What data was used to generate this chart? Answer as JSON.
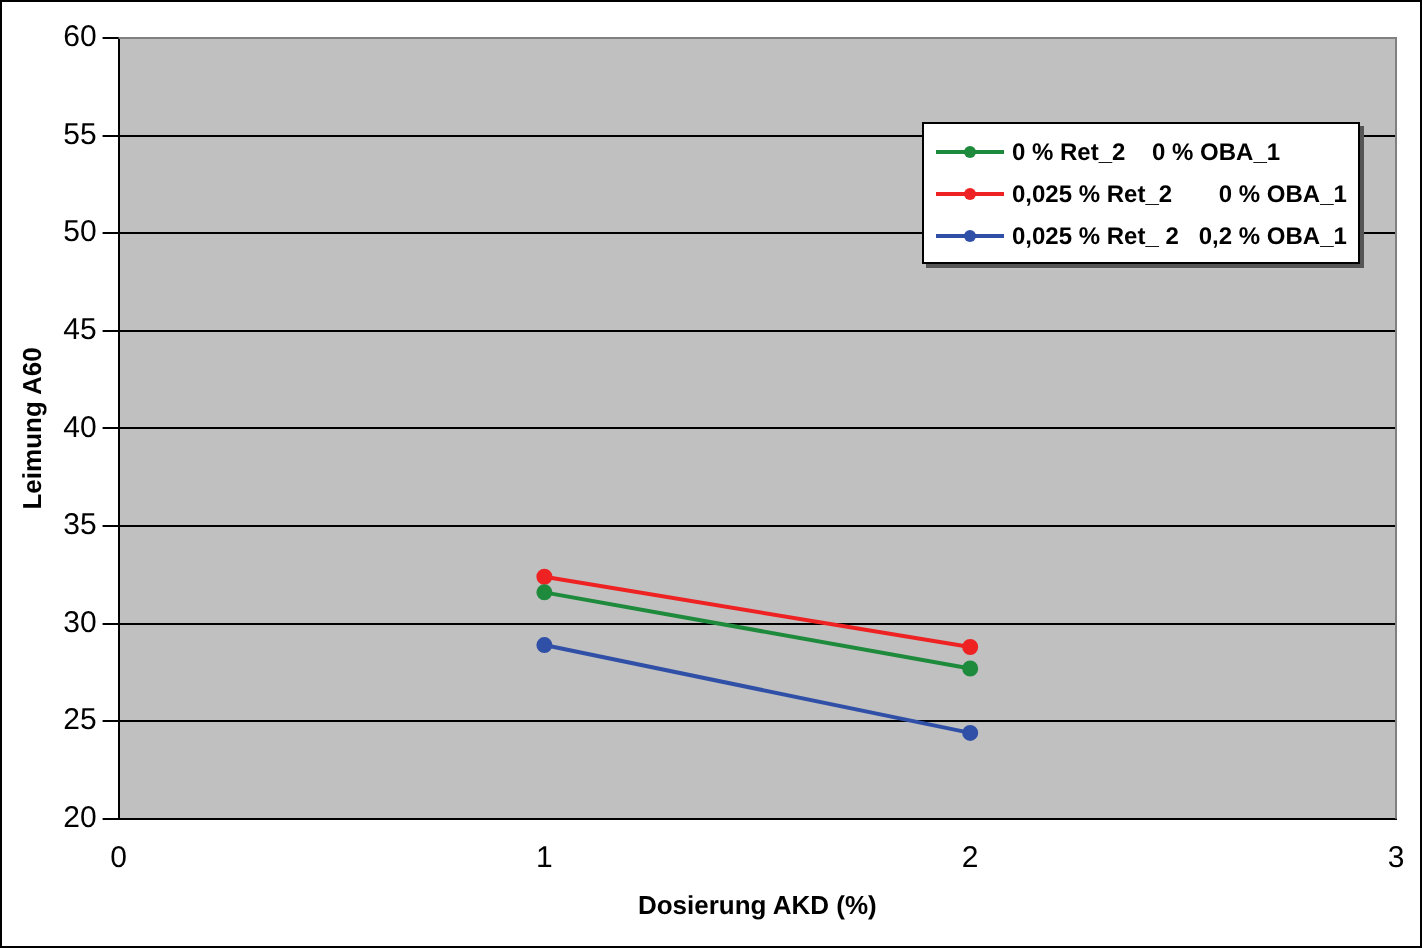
{
  "chart_data": {
    "type": "line",
    "xlabel": "Dosierung AKD (%)",
    "ylabel": "Leimung A60",
    "x": [
      1,
      2
    ],
    "series": [
      {
        "name": "0 % Ret_2    0 % OBA_1",
        "color": "#1e8a3c",
        "values": [
          31.6,
          27.7
        ]
      },
      {
        "name": "0,025 % Ret_2       0 % OBA_1",
        "color": "#ee2222",
        "values": [
          32.4,
          28.8
        ]
      },
      {
        "name": "0,025 % Ret_ 2   0,2 % OBA_1",
        "color": "#3050a8",
        "values": [
          28.9,
          24.4
        ]
      }
    ],
    "xlim": [
      0,
      3
    ],
    "xticks": [
      0,
      1,
      2,
      3
    ],
    "ylim": [
      20,
      60
    ],
    "yticks": [
      20,
      25,
      30,
      35,
      40,
      45,
      50,
      55,
      60
    ],
    "grid": "y",
    "legend": "top right",
    "marker": "circle",
    "line_style": "solid"
  }
}
